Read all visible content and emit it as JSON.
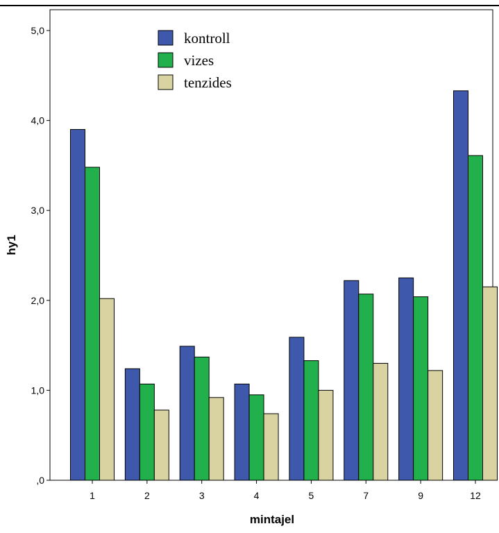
{
  "chart_data": {
    "type": "bar",
    "categories": [
      "1",
      "2",
      "3",
      "4",
      "5",
      "7",
      "9",
      "12"
    ],
    "series": [
      {
        "name": "kontroll",
        "values": [
          3.9,
          1.24,
          1.49,
          1.07,
          1.59,
          2.22,
          2.25,
          4.33
        ]
      },
      {
        "name": "vizes",
        "values": [
          3.48,
          1.07,
          1.37,
          0.95,
          1.33,
          2.07,
          2.04,
          3.61
        ]
      },
      {
        "name": "tenzides",
        "values": [
          2.02,
          0.78,
          0.92,
          0.74,
          1.0,
          1.3,
          1.22,
          2.15
        ]
      }
    ],
    "colors": [
      "#3e58ac",
      "#21b04b",
      "#d8d3a0"
    ],
    "xlabel": "mintajel",
    "ylabel": "hy1",
    "ylim": [
      0,
      5
    ],
    "yticks": [
      0,
      1,
      2,
      3,
      4,
      5
    ],
    "ytick_labels": [
      ",0",
      "1,0",
      "2,0",
      "3,0",
      "4,0",
      "5,0"
    ],
    "grid": false,
    "legend_position": "top-left"
  }
}
